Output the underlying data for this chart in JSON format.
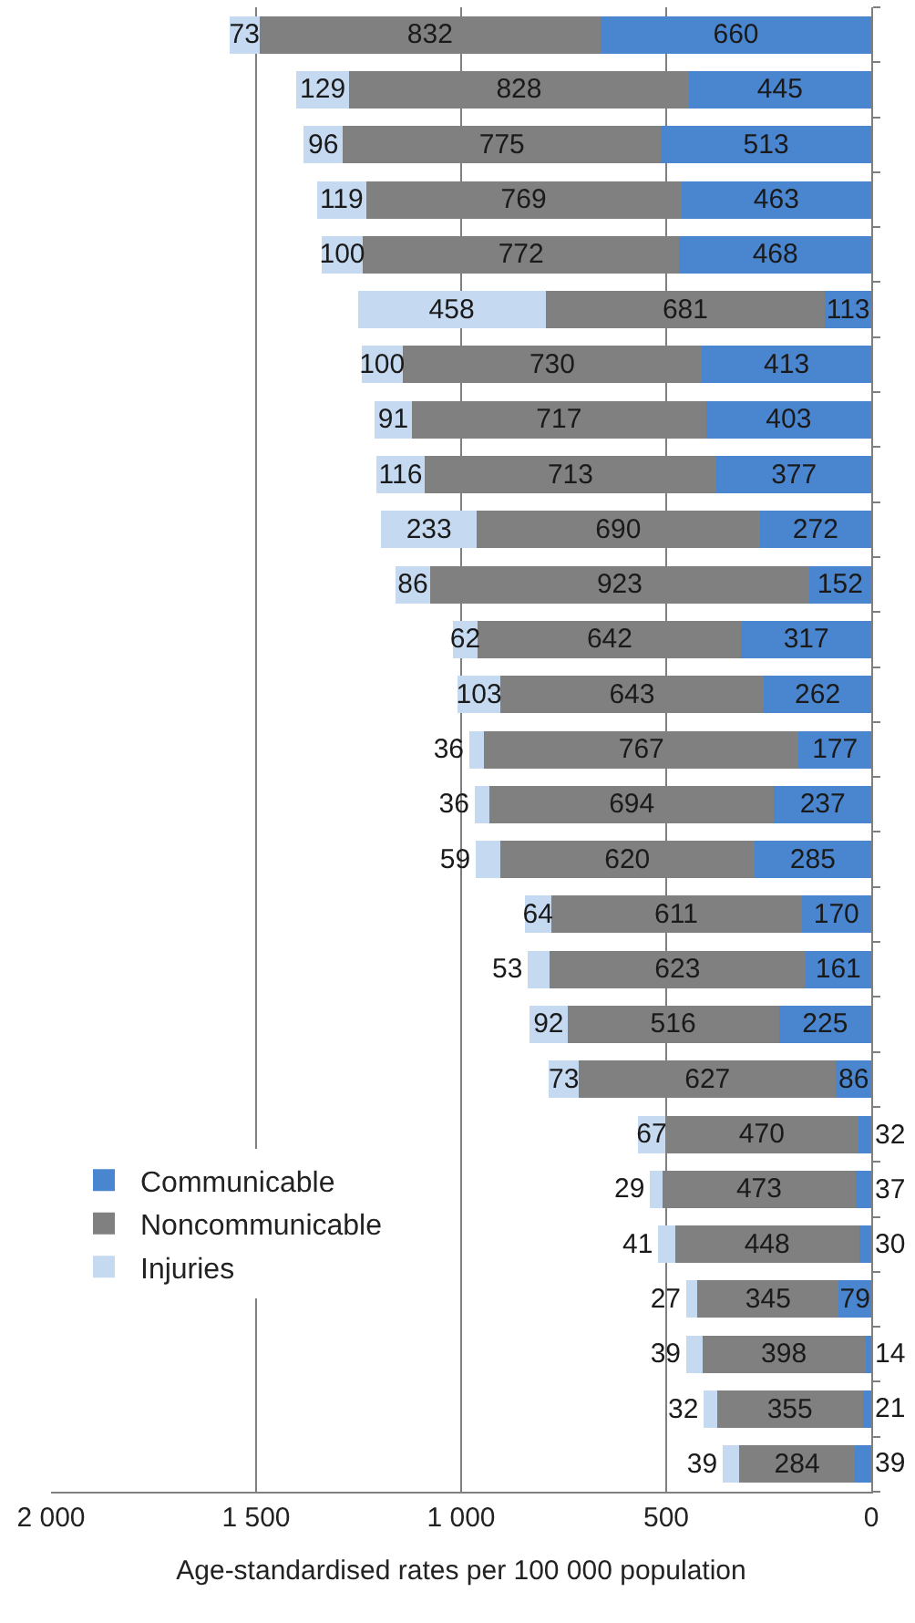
{
  "chart_data": {
    "type": "bar",
    "orientation": "horizontal",
    "stacked": true,
    "xlabel": "Age-standardised rates per 100 000 population",
    "categories": [
      null,
      null,
      null,
      null,
      null,
      null,
      null,
      null,
      null,
      null,
      null,
      null,
      null,
      null,
      null,
      null,
      null,
      null,
      null,
      null,
      null,
      null,
      null,
      null,
      null,
      null,
      null
    ],
    "series": [
      {
        "name": "Communicable",
        "color": "#4a86d0",
        "values": [
          660,
          445,
          513,
          463,
          468,
          113,
          413,
          403,
          377,
          272,
          152,
          317,
          262,
          177,
          237,
          285,
          170,
          161,
          225,
          86,
          32,
          37,
          30,
          79,
          14,
          21,
          39
        ]
      },
      {
        "name": "Noncommunicable",
        "color": "#808080",
        "values": [
          832,
          828,
          775,
          769,
          772,
          681,
          730,
          717,
          713,
          690,
          923,
          642,
          643,
          767,
          694,
          620,
          611,
          623,
          516,
          627,
          470,
          473,
          448,
          345,
          398,
          355,
          284
        ]
      },
      {
        "name": "Injuries",
        "color": "#c5d9f1",
        "values": [
          73,
          129,
          96,
          119,
          100,
          458,
          100,
          91,
          116,
          233,
          86,
          62,
          103,
          36,
          36,
          59,
          64,
          53,
          92,
          73,
          67,
          29,
          41,
          27,
          39,
          32,
          39
        ]
      }
    ],
    "xlim": [
      2000,
      0
    ],
    "xticks": [
      {
        "value": 2000,
        "label": "2 000"
      },
      {
        "value": 1500,
        "label": "1 500"
      },
      {
        "value": 1000,
        "label": "1 000"
      },
      500,
      0
    ],
    "grid": "x",
    "legend": "bottom left",
    "data_labels": true
  }
}
